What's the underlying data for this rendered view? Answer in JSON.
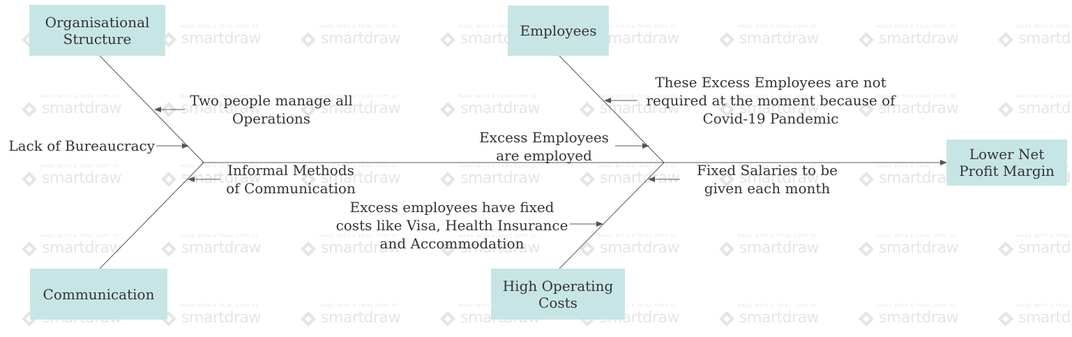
{
  "watermark": {
    "small_text": "MADE WITH A TRIAL COPY OF",
    "brand_text": "smartdraw"
  },
  "effect": {
    "label": "Lower Net Profit Margin"
  },
  "categories": {
    "organisational_structure": "Organisational Structure",
    "employees": "Employees",
    "communication": "Communication",
    "high_operating_costs": "High Operating Costs"
  },
  "causes": {
    "two_people": "Two people manage all Operations",
    "lack_bureaucracy": "Lack of Bureaucracy",
    "informal_methods": "Informal Methods of Communication",
    "excess_not_required": "These Excess Employees are not required at the moment because of Covid-19 Pandemic",
    "excess_employed": "Excess Employees are employed",
    "fixed_salaries": "Fixed Salaries to be given each month",
    "excess_fixed_costs": "Excess employees have fixed costs like Visa, Health Insurance and Accommodation"
  },
  "colors": {
    "box_fill": "#c8e5e5",
    "line": "#555555",
    "text": "#333333"
  }
}
